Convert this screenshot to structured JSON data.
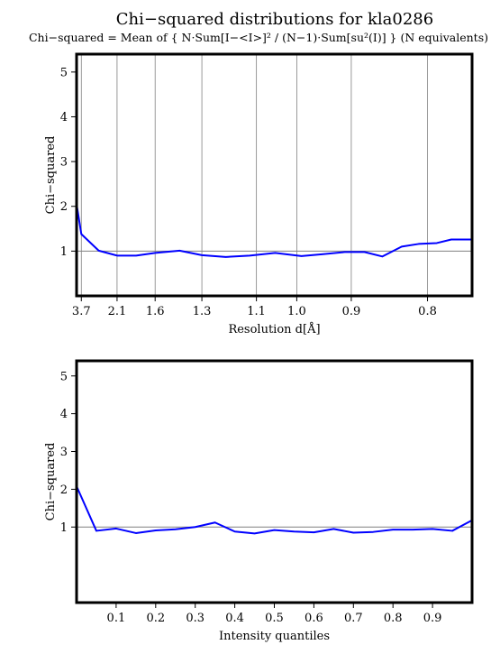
{
  "title": "Chi−squared distributions for kla0286",
  "subtitle": "Chi−squared = Mean of { N·Sum[I−<I>]² / (N−1)·Sum[su²(I)] } (N equivalents)",
  "colors": {
    "series": "#0000ff",
    "grid": "#808080",
    "axis": "#000000"
  },
  "chart_data": [
    {
      "type": "line",
      "xlabel": "Resolution d[Å]",
      "ylabel": "Chi−squared",
      "x_scale": "reciprocal-squared",
      "grid": "vertical lines at x ticks, horizontal line at y = 1",
      "ylim": [
        0,
        5.4
      ],
      "xlim": [
        4.36,
        0.755
      ],
      "x_ticks": [
        3.7,
        2.1,
        1.6,
        1.3,
        1.1,
        1.0,
        0.9,
        0.8
      ],
      "x_tick_labels": [
        "3.7",
        "2.1",
        "1.6",
        "1.3",
        "1.1",
        "1.0",
        "0.9",
        "0.8"
      ],
      "y_ticks": [
        1,
        2,
        3,
        4,
        5
      ],
      "y_tick_labels": [
        "1",
        "2",
        "3",
        "4",
        "5"
      ],
      "reference_line_y": 1,
      "series": [
        {
          "x": [
            4.36,
            3.7,
            2.6,
            2.1,
            1.8,
            1.6,
            1.42,
            1.3,
            1.2,
            1.12,
            1.05,
            0.99,
            0.95,
            0.91,
            0.88,
            0.855,
            0.83,
            0.81,
            0.79,
            0.775,
            0.755
          ],
          "y": [
            2.05,
            1.38,
            1.01,
            0.9,
            0.9,
            0.96,
            1.01,
            0.91,
            0.87,
            0.9,
            0.96,
            0.89,
            0.93,
            0.98,
            0.98,
            0.88,
            1.1,
            1.16,
            1.18,
            1.26,
            1.26
          ]
        }
      ]
    },
    {
      "type": "line",
      "xlabel": "Intensity quantiles",
      "ylabel": "Chi−squared",
      "grid": "horizontal line at y = 1",
      "ylim": [
        -1,
        5.4
      ],
      "xlim": [
        0,
        1
      ],
      "x_ticks": [
        0.1,
        0.2,
        0.3,
        0.4,
        0.5,
        0.6,
        0.7,
        0.8,
        0.9
      ],
      "x_tick_labels": [
        "0.1",
        "0.2",
        "0.3",
        "0.4",
        "0.5",
        "0.6",
        "0.7",
        "0.8",
        "0.9"
      ],
      "y_ticks": [
        1,
        2,
        3,
        4,
        5
      ],
      "y_tick_labels": [
        "1",
        "2",
        "3",
        "4",
        "5"
      ],
      "reference_line_y": 1,
      "series": [
        {
          "x": [
            0,
            0.05,
            0.1,
            0.15,
            0.2,
            0.25,
            0.3,
            0.35,
            0.4,
            0.45,
            0.5,
            0.55,
            0.6,
            0.65,
            0.7,
            0.75,
            0.8,
            0.85,
            0.9,
            0.95,
            1.0
          ],
          "y": [
            2.08,
            0.9,
            0.96,
            0.84,
            0.91,
            0.94,
            1.0,
            1.12,
            0.88,
            0.83,
            0.92,
            0.88,
            0.86,
            0.95,
            0.85,
            0.87,
            0.93,
            0.93,
            0.95,
            0.9,
            1.18
          ]
        }
      ]
    }
  ]
}
